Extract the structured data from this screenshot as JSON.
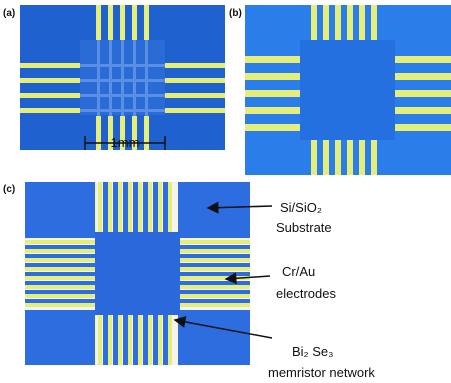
{
  "panels": {
    "a": {
      "label": "(a)",
      "scale_bar": "1mm"
    },
    "b": {
      "label": "(b)"
    },
    "c": {
      "label": "(c)"
    }
  },
  "annotations": [
    {
      "lines": [
        "Si/SiO₂",
        "Substrate"
      ]
    },
    {
      "lines": [
        "Cr/Au",
        "electrodes"
      ]
    },
    {
      "lines": [
        "Bi₂ Se₃",
        "memristor network"
      ]
    }
  ]
}
